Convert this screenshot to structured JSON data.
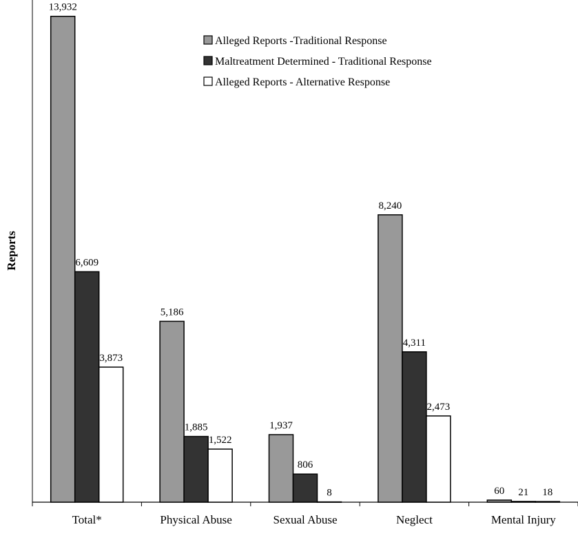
{
  "chart_data": {
    "type": "bar",
    "title": "",
    "xlabel": "",
    "ylabel": "Reports",
    "ylim": [
      0,
      14400
    ],
    "grid": false,
    "legend_position": "top-right",
    "categories": [
      "Total*",
      "Physical Abuse",
      "Sexual Abuse",
      "Neglect",
      "Mental Injury"
    ],
    "series": [
      {
        "name": "Alleged Reports -Traditional Response",
        "color": "#999999",
        "values": [
          13932,
          5186,
          1937,
          8240,
          60
        ],
        "labels": [
          "13,932",
          "5,186",
          "1,937",
          "8,240",
          "60"
        ]
      },
      {
        "name": "Maltreatment Determined - Traditional Response",
        "color": "#333333",
        "values": [
          6609,
          1885,
          806,
          4311,
          21
        ],
        "labels": [
          "6,609",
          "1,885",
          "806",
          "4,311",
          "21"
        ]
      },
      {
        "name": "Alleged Reports - Alternative Response",
        "color": "#ffffff",
        "values": [
          3873,
          1522,
          8,
          2473,
          18
        ],
        "labels": [
          "3,873",
          "1,522",
          "8",
          "2,473",
          "18"
        ]
      }
    ]
  }
}
